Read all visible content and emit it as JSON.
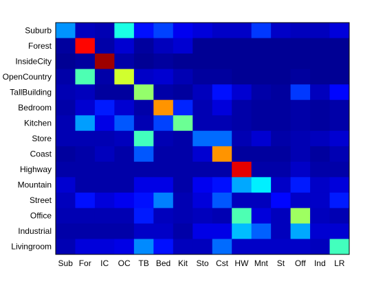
{
  "chart_data": {
    "type": "heatmap",
    "title": "",
    "xlabel": "",
    "ylabel": "",
    "x_categories": [
      "Sub",
      "For",
      "IC",
      "OC",
      "TB",
      "Bed",
      "Kit",
      "Sto",
      "Cst",
      "HW",
      "Mnt",
      "St",
      "Off",
      "Ind",
      "LR"
    ],
    "y_categories": [
      "Suburb",
      "Forest",
      "InsideCity",
      "OpenCountry",
      "TallBuilding",
      "Bedroom",
      "Kitchen",
      "Store",
      "Coast",
      "Highway",
      "Mountain",
      "Street",
      "Office",
      "Industrial",
      "Livingroom"
    ],
    "color_range": [
      0,
      1
    ],
    "colormap": "jet",
    "grid": false,
    "values": [
      [
        0.27,
        0.06,
        0.05,
        0.4,
        0.14,
        0.19,
        0.11,
        0.09,
        0.07,
        0.07,
        0.18,
        0.07,
        0.06,
        0.06,
        0.09
      ],
      [
        0.03,
        0.87,
        0.04,
        0.08,
        0.03,
        0.06,
        0.08,
        0.02,
        0.02,
        0.02,
        0.02,
        0.02,
        0.02,
        0.02,
        0.02
      ],
      [
        0.02,
        0.03,
        0.97,
        0.04,
        0.02,
        0.03,
        0.02,
        0.02,
        0.02,
        0.02,
        0.02,
        0.02,
        0.02,
        0.02,
        0.02
      ],
      [
        0.04,
        0.45,
        0.04,
        0.58,
        0.07,
        0.08,
        0.05,
        0.03,
        0.03,
        0.02,
        0.02,
        0.02,
        0.03,
        0.02,
        0.02
      ],
      [
        0.05,
        0.06,
        0.03,
        0.03,
        0.52,
        0.04,
        0.03,
        0.06,
        0.14,
        0.08,
        0.04,
        0.03,
        0.18,
        0.06,
        0.13
      ],
      [
        0.04,
        0.08,
        0.15,
        0.08,
        0.04,
        0.73,
        0.16,
        0.05,
        0.09,
        0.04,
        0.03,
        0.03,
        0.04,
        0.03,
        0.04
      ],
      [
        0.05,
        0.28,
        0.1,
        0.21,
        0.05,
        0.19,
        0.48,
        0.05,
        0.05,
        0.04,
        0.03,
        0.03,
        0.04,
        0.03,
        0.04
      ],
      [
        0.05,
        0.05,
        0.05,
        0.06,
        0.44,
        0.05,
        0.04,
        0.23,
        0.23,
        0.05,
        0.08,
        0.04,
        0.05,
        0.06,
        0.08
      ],
      [
        0.03,
        0.04,
        0.06,
        0.04,
        0.21,
        0.04,
        0.04,
        0.08,
        0.73,
        0.03,
        0.03,
        0.03,
        0.05,
        0.03,
        0.05
      ],
      [
        0.04,
        0.04,
        0.04,
        0.04,
        0.04,
        0.04,
        0.04,
        0.04,
        0.04,
        0.9,
        0.04,
        0.04,
        0.07,
        0.04,
        0.04
      ],
      [
        0.08,
        0.04,
        0.04,
        0.04,
        0.1,
        0.1,
        0.04,
        0.11,
        0.14,
        0.29,
        0.36,
        0.07,
        0.15,
        0.07,
        0.09
      ],
      [
        0.06,
        0.14,
        0.09,
        0.11,
        0.14,
        0.25,
        0.05,
        0.09,
        0.21,
        0.06,
        0.06,
        0.13,
        0.07,
        0.07,
        0.15
      ],
      [
        0.05,
        0.05,
        0.05,
        0.05,
        0.15,
        0.06,
        0.05,
        0.06,
        0.05,
        0.45,
        0.09,
        0.06,
        0.53,
        0.06,
        0.05
      ],
      [
        0.04,
        0.04,
        0.04,
        0.04,
        0.07,
        0.07,
        0.04,
        0.1,
        0.1,
        0.31,
        0.22,
        0.06,
        0.29,
        0.08,
        0.08
      ],
      [
        0.05,
        0.09,
        0.09,
        0.1,
        0.26,
        0.14,
        0.06,
        0.06,
        0.23,
        0.07,
        0.07,
        0.07,
        0.07,
        0.06,
        0.44
      ]
    ]
  }
}
